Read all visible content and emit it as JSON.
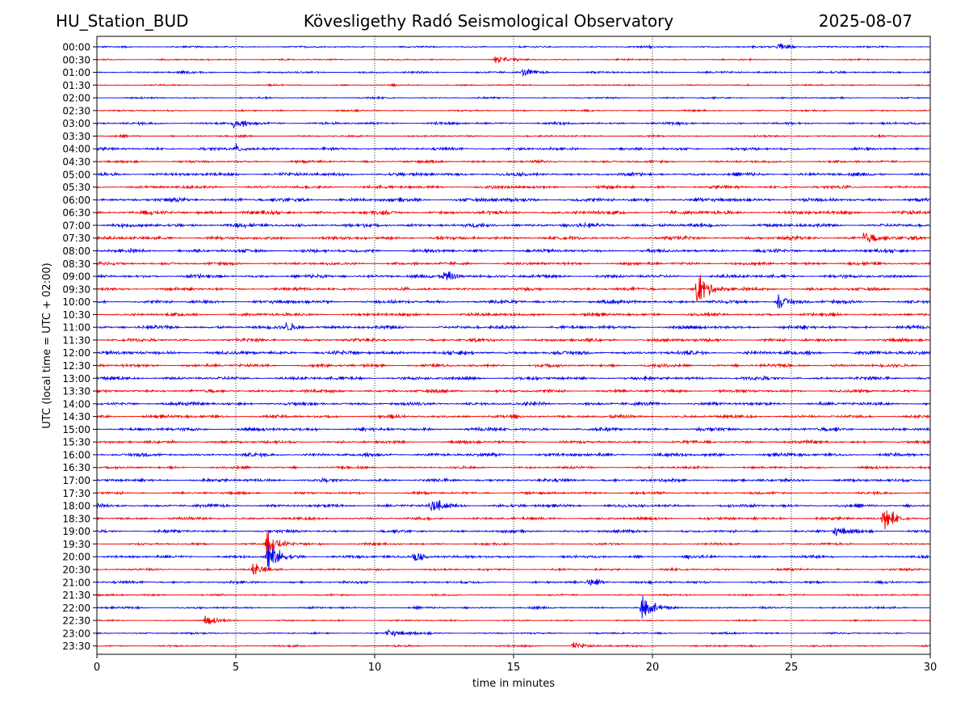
{
  "header": {
    "station": "HU_Station_BUD",
    "observatory": "Kövesligethy Radó Seismological Observatory",
    "date": "2025-08-07"
  },
  "chart_data": {
    "type": "line",
    "title": "Kövesligethy Radó Seismological Observatory",
    "xlabel": "time in minutes",
    "ylabel": "UTC (local time = UTC + 02:00)",
    "xlim": [
      0,
      30
    ],
    "xticks": [
      0,
      5,
      10,
      15,
      20,
      25,
      30
    ],
    "xtick_labels": [
      "0",
      "5",
      "10",
      "15",
      "20",
      "25",
      "30"
    ],
    "grid": "vertical dotted at x ticks",
    "row_labels": [
      "00:00",
      "00:30",
      "01:00",
      "01:30",
      "02:00",
      "02:30",
      "03:00",
      "03:30",
      "04:00",
      "04:30",
      "05:00",
      "05:30",
      "06:00",
      "06:30",
      "07:00",
      "07:30",
      "08:00",
      "08:30",
      "09:00",
      "09:30",
      "10:00",
      "10:30",
      "11:00",
      "11:30",
      "12:00",
      "12:30",
      "13:00",
      "13:30",
      "14:00",
      "14:30",
      "15:00",
      "15:30",
      "16:00",
      "16:30",
      "17:00",
      "17:30",
      "18:00",
      "18:30",
      "19:00",
      "19:30",
      "20:00",
      "20:30",
      "21:00",
      "21:30",
      "22:00",
      "22:30",
      "23:00",
      "23:30"
    ],
    "colors": [
      "#0000ee",
      "#ee0000"
    ],
    "noise_level": [
      0.25,
      0.22,
      0.3,
      0.22,
      0.22,
      0.22,
      0.35,
      0.25,
      0.4,
      0.35,
      0.5,
      0.45,
      0.55,
      0.55,
      0.55,
      0.5,
      0.5,
      0.45,
      0.5,
      0.45,
      0.5,
      0.45,
      0.5,
      0.45,
      0.55,
      0.45,
      0.5,
      0.45,
      0.5,
      0.45,
      0.5,
      0.4,
      0.5,
      0.35,
      0.45,
      0.35,
      0.45,
      0.4,
      0.4,
      0.3,
      0.4,
      0.3,
      0.35,
      0.25,
      0.3,
      0.2,
      0.25,
      0.25
    ],
    "events": [
      {
        "row": "00:00",
        "minute": 24.5,
        "amp": 1.2
      },
      {
        "row": "00:30",
        "minute": 14.3,
        "amp": 1.0
      },
      {
        "row": "01:00",
        "minute": 15.3,
        "amp": 1.0
      },
      {
        "row": "03:00",
        "minute": 4.9,
        "amp": 1.4
      },
      {
        "row": "04:00",
        "minute": 5.0,
        "amp": 1.3
      },
      {
        "row": "07:30",
        "minute": 27.6,
        "amp": 2.0
      },
      {
        "row": "09:00",
        "minute": 12.5,
        "amp": 1.8
      },
      {
        "row": "09:30",
        "minute": 21.6,
        "amp": 4.5
      },
      {
        "row": "10:00",
        "minute": 24.5,
        "amp": 2.0
      },
      {
        "row": "11:00",
        "minute": 6.8,
        "amp": 1.4
      },
      {
        "row": "18:00",
        "minute": 12.0,
        "amp": 1.6
      },
      {
        "row": "18:30",
        "minute": 28.3,
        "amp": 3.0
      },
      {
        "row": "19:00",
        "minute": 26.5,
        "amp": 1.3
      },
      {
        "row": "19:30",
        "minute": 6.1,
        "amp": 3.5
      },
      {
        "row": "20:00",
        "minute": 6.1,
        "amp": 4.0
      },
      {
        "row": "20:00",
        "minute": 11.4,
        "amp": 1.6
      },
      {
        "row": "20:30",
        "minute": 5.6,
        "amp": 1.5
      },
      {
        "row": "21:00",
        "minute": 17.7,
        "amp": 1.2
      },
      {
        "row": "22:00",
        "minute": 19.6,
        "amp": 3.5
      },
      {
        "row": "22:30",
        "minute": 3.9,
        "amp": 1.2
      },
      {
        "row": "23:00",
        "minute": 10.4,
        "amp": 1.5
      },
      {
        "row": "23:30",
        "minute": 17.1,
        "amp": 1.1
      }
    ]
  }
}
